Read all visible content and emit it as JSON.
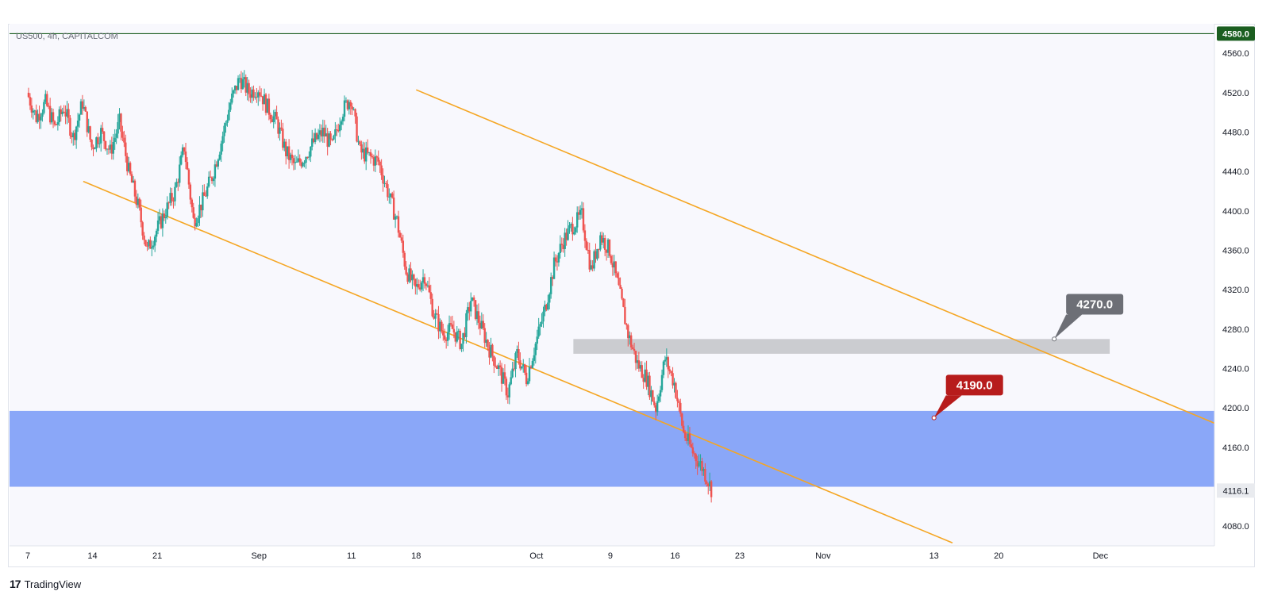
{
  "symbol_title": "US500, 4h, CAPITALCOM",
  "brand": {
    "logo": "17",
    "name": "TradingView"
  },
  "colors": {
    "up": "#26a69a",
    "down": "#ef5350",
    "channel": "#f5a623",
    "demand_zone": "#8aa7f8",
    "resistance_zone": "#c8c9cd",
    "top_line": "#1b5e20",
    "callout_red": "#b71c1c",
    "callout_gray": "#6d6f76",
    "last_price_bg": "#e9ebef"
  },
  "chart_data": {
    "type": "candlestick",
    "timeframe": "4h",
    "ylim": [
      4060,
      4590
    ],
    "x_ticks": [
      {
        "label": "7",
        "x": 0
      },
      {
        "label": "14",
        "x": 7
      },
      {
        "label": "21",
        "x": 14
      },
      {
        "label": "Sep",
        "x": 25
      },
      {
        "label": "11",
        "x": 35
      },
      {
        "label": "18",
        "x": 42
      },
      {
        "label": "Oct",
        "x": 55
      },
      {
        "label": "9",
        "x": 63
      },
      {
        "label": "16",
        "x": 70
      },
      {
        "label": "23",
        "x": 77
      },
      {
        "label": "Nov",
        "x": 86
      },
      {
        "label": "13",
        "x": 98
      },
      {
        "label": "20",
        "x": 105
      },
      {
        "label": "Dec",
        "x": 116
      }
    ],
    "y_ticks": [
      4080,
      4120,
      4160,
      4200,
      4240,
      4280,
      4320,
      4360,
      4400,
      4440,
      4480,
      4520,
      4560
    ],
    "last_price": "4116.1",
    "top_level": {
      "value": 4580,
      "label": "4580.0"
    },
    "price_path": [
      [
        0,
        4520
      ],
      [
        1,
        4495
      ],
      [
        2,
        4510
      ],
      [
        3,
        4485
      ],
      [
        4,
        4505
      ],
      [
        5,
        4475
      ],
      [
        6,
        4510
      ],
      [
        7,
        4465
      ],
      [
        8,
        4480
      ],
      [
        9,
        4460
      ],
      [
        10,
        4490
      ],
      [
        11,
        4440
      ],
      [
        12,
        4405
      ],
      [
        13,
        4360
      ],
      [
        14,
        4380
      ],
      [
        15,
        4400
      ],
      [
        16,
        4420
      ],
      [
        17,
        4465
      ],
      [
        18,
        4390
      ],
      [
        19,
        4410
      ],
      [
        20,
        4435
      ],
      [
        21,
        4470
      ],
      [
        22,
        4510
      ],
      [
        23,
        4535
      ],
      [
        24,
        4520
      ],
      [
        25,
        4525
      ],
      [
        26,
        4505
      ],
      [
        27,
        4490
      ],
      [
        28,
        4460
      ],
      [
        29,
        4445
      ],
      [
        30,
        4455
      ],
      [
        31,
        4470
      ],
      [
        32,
        4480
      ],
      [
        33,
        4465
      ],
      [
        34,
        4500
      ],
      [
        35,
        4515
      ],
      [
        36,
        4460
      ],
      [
        37,
        4455
      ],
      [
        38,
        4450
      ],
      [
        39,
        4420
      ],
      [
        40,
        4390
      ],
      [
        41,
        4340
      ],
      [
        42,
        4320
      ],
      [
        43,
        4335
      ],
      [
        44,
        4295
      ],
      [
        45,
        4275
      ],
      [
        46,
        4280
      ],
      [
        47,
        4265
      ],
      [
        48,
        4310
      ],
      [
        49,
        4285
      ],
      [
        50,
        4260
      ],
      [
        51,
        4240
      ],
      [
        52,
        4215
      ],
      [
        53,
        4255
      ],
      [
        54,
        4230
      ],
      [
        55,
        4265
      ],
      [
        56,
        4300
      ],
      [
        57,
        4345
      ],
      [
        58,
        4370
      ],
      [
        59,
        4385
      ],
      [
        60,
        4395
      ],
      [
        61,
        4340
      ],
      [
        62,
        4375
      ],
      [
        63,
        4360
      ],
      [
        64,
        4320
      ],
      [
        65,
        4275
      ],
      [
        66,
        4245
      ],
      [
        67,
        4230
      ],
      [
        68,
        4200
      ],
      [
        69,
        4250
      ],
      [
        70,
        4225
      ],
      [
        71,
        4175
      ],
      [
        72,
        4155
      ],
      [
        73,
        4140
      ],
      [
        74,
        4118
      ]
    ],
    "demand_zone": {
      "from": 4120,
      "to": 4197
    },
    "resistance_zone": {
      "from": 4255,
      "to": 4270,
      "x_start": 59,
      "x_end": 117
    },
    "channel_upper": {
      "x1": 42,
      "y1": 4523,
      "x2": 130,
      "y2": 4178
    },
    "channel_lower": {
      "x1": 6,
      "y1": 4430,
      "x2": 100,
      "y2": 4063
    },
    "callouts": [
      {
        "label": "4270.0",
        "value": 4270,
        "x": 111,
        "box_x": 111,
        "box_price": 4298,
        "color": "gray"
      },
      {
        "label": "4190.0",
        "value": 4190,
        "x": 98,
        "box_x": 98,
        "box_price": 4216,
        "color": "red"
      }
    ]
  }
}
